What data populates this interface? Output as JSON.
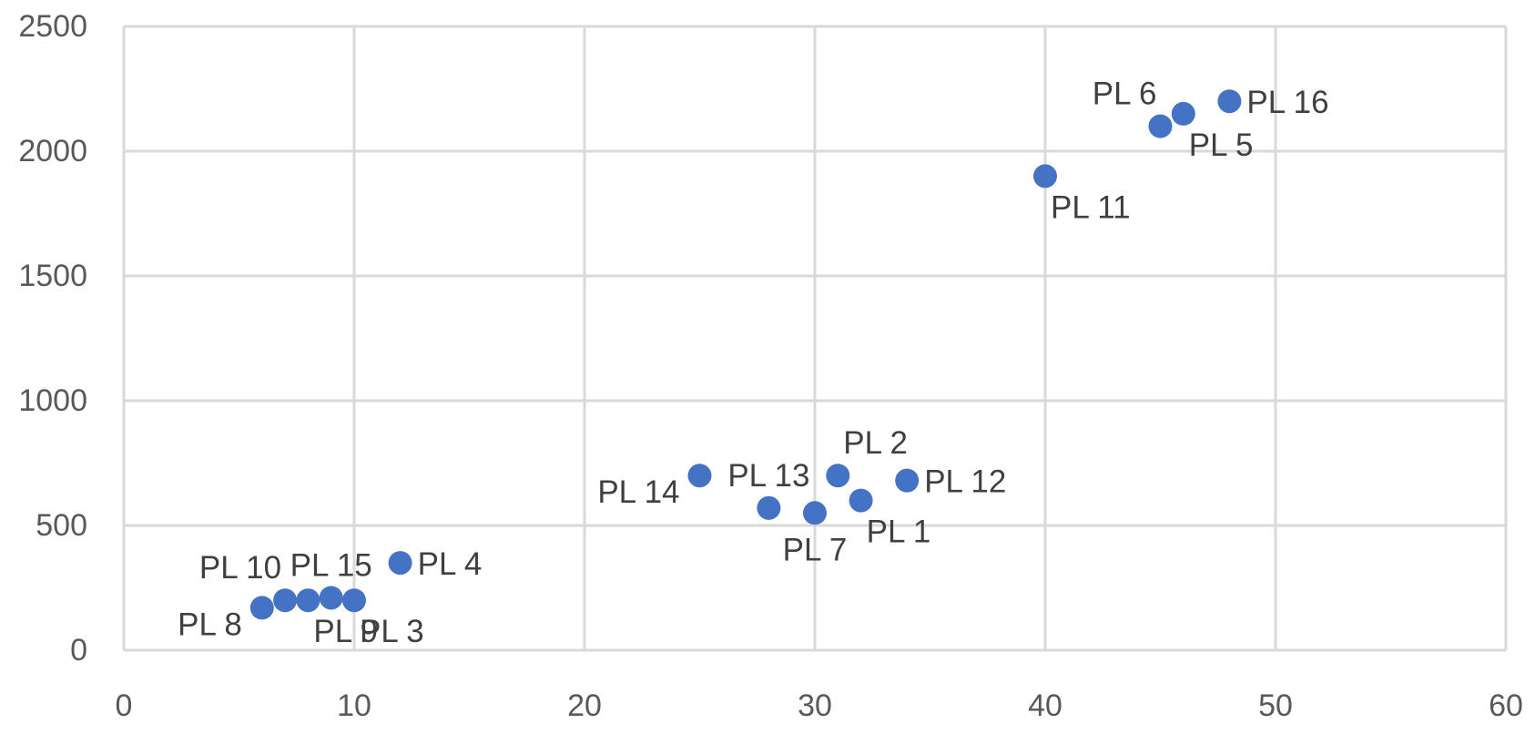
{
  "chart_data": {
    "type": "scatter",
    "title": "",
    "xlabel": "",
    "ylabel": "",
    "xlim": [
      0,
      60
    ],
    "ylim": [
      0,
      2500
    ],
    "x_ticks": [
      0,
      10,
      20,
      30,
      40,
      50,
      60
    ],
    "y_ticks": [
      0,
      500,
      1000,
      1500,
      2000,
      2500
    ],
    "grid": true,
    "legend": "none",
    "colors": {
      "points": "#4472C4",
      "grid": "#D9D9D9",
      "tick_labels": "#595959",
      "data_labels": "#404040"
    },
    "series": [
      {
        "points": [
          {
            "label": "PL 1",
            "x": 32,
            "y": 600,
            "label_position": "below-right"
          },
          {
            "label": "PL 2",
            "x": 31,
            "y": 700,
            "label_position": "above-right"
          },
          {
            "label": "PL 3",
            "x": 10,
            "y": 200,
            "label_position": "below-right"
          },
          {
            "label": "PL 4",
            "x": 12,
            "y": 350,
            "label_position": "right"
          },
          {
            "label": "PL 5",
            "x": 46,
            "y": 2150,
            "label_position": "below-right"
          },
          {
            "label": "PL 6",
            "x": 45,
            "y": 2100,
            "label_position": "above-left"
          },
          {
            "label": "PL 7",
            "x": 30,
            "y": 550,
            "label_position": "below"
          },
          {
            "label": "PL 8",
            "x": 6,
            "y": 170,
            "label_position": "below-left"
          },
          {
            "label": "PL 9",
            "x": 8,
            "y": 200,
            "label_position": "below-right"
          },
          {
            "label": "PL 10",
            "x": 7,
            "y": 200,
            "label_position": "above-left"
          },
          {
            "label": "PL 11",
            "x": 40,
            "y": 1900,
            "label_position": "below-right"
          },
          {
            "label": "PL 12",
            "x": 34,
            "y": 680,
            "label_position": "right"
          },
          {
            "label": "PL 13",
            "x": 28,
            "y": 570,
            "label_position": "above"
          },
          {
            "label": "PL 14",
            "x": 25,
            "y": 700,
            "label_position": "below-left"
          },
          {
            "label": "PL 15",
            "x": 9,
            "y": 210,
            "label_position": "above"
          },
          {
            "label": "PL 16",
            "x": 48,
            "y": 2200,
            "label_position": "right"
          }
        ]
      }
    ]
  }
}
